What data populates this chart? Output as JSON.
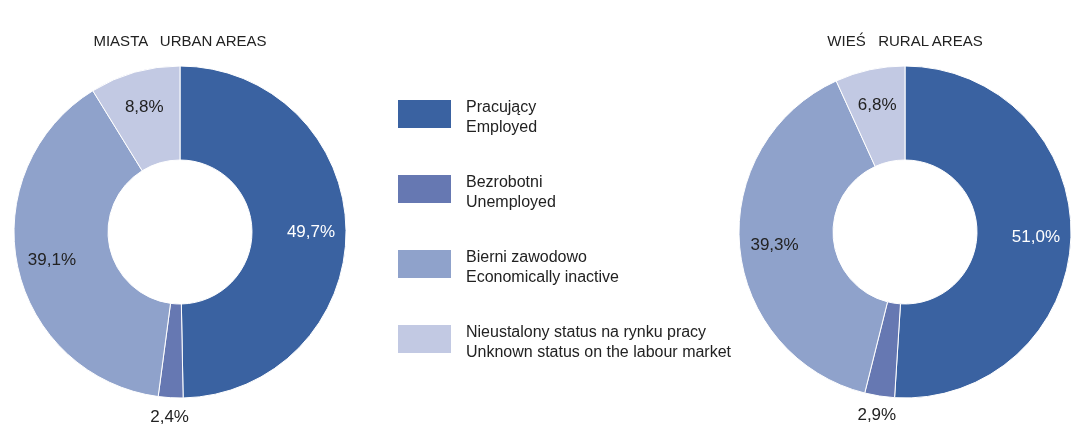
{
  "chart_data": [
    {
      "type": "donut",
      "title": "MIASTA   URBAN AREAS",
      "categories": [
        "Pracujący\nEmployed",
        "Bezrobotni\nUnemployed",
        "Bierni zawodowo\nEconomically inactive",
        "Nieustalony status na rynku pracy\nUnknown status on the labour market"
      ],
      "values": [
        49.7,
        2.4,
        39.1,
        8.8
      ],
      "value_labels": [
        "49,7%",
        "2,4%",
        "39,1%",
        "8,8%"
      ],
      "colors": [
        "#3a62a1",
        "#6678b2",
        "#8fa2cb",
        "#c2c9e3"
      ],
      "legend": "right"
    },
    {
      "type": "donut",
      "title": "WIEŚ   RURAL AREAS",
      "categories": [
        null,
        null,
        null,
        null
      ],
      "values": [
        51.0,
        2.9,
        39.3,
        6.8
      ],
      "value_labels": [
        "51,0%",
        "2,9%",
        "39,3%",
        "6,8%"
      ],
      "colors": [
        "#3a62a1",
        "#6678b2",
        "#8fa2cb",
        "#c2c9e3"
      ],
      "legend": false
    }
  ]
}
